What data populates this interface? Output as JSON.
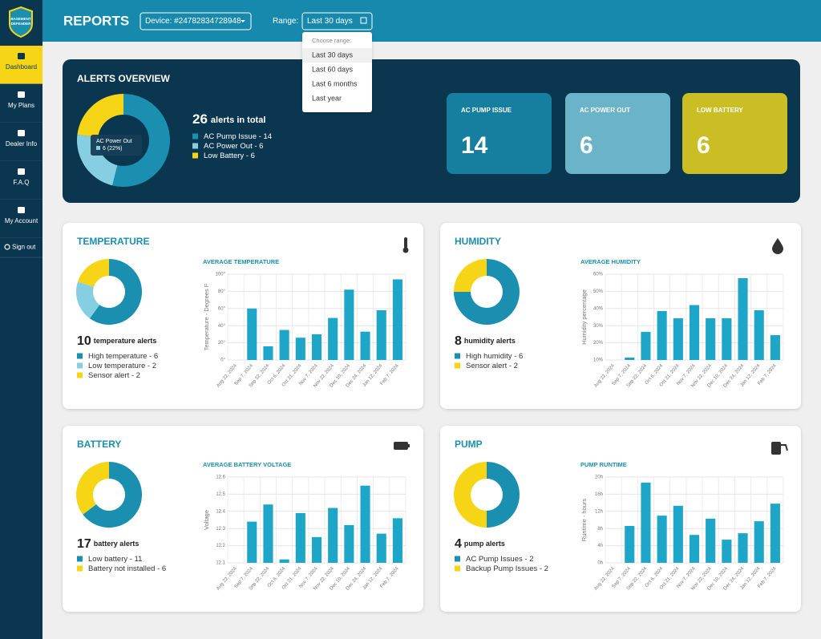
{
  "sidebar": {
    "logo_text": [
      "BASEMENT",
      "DEFENDER"
    ],
    "nav": [
      "Dashboard",
      "My Plans",
      "Dealer Info",
      "F.A.Q",
      "My Account",
      "Sign out"
    ],
    "active": 0
  },
  "header": {
    "title": "REPORTS",
    "device": "Device: #24782834728948",
    "range_label": "Range:",
    "range_value": "Last 30 days"
  },
  "dropdown": {
    "heading": "Choose range:",
    "options": [
      "Last 30 days",
      "Last 60 days",
      "Last 6 months",
      "Last year"
    ],
    "selected": 0
  },
  "overview": {
    "title": "ALERTS OVERVIEW",
    "total": 26,
    "total_label": "alerts in total",
    "donut": {
      "type": "pie",
      "labels": [
        "AC Pump Issue - 14",
        "AC Power Out - 6",
        "Low Battery - 6"
      ],
      "values": [
        14,
        6,
        6
      ],
      "colors": [
        "#1a8fb0",
        "#86cfe2",
        "#f5d515"
      ]
    },
    "tooltip": {
      "name": "AC Power Out",
      "value": "6 (22%)"
    },
    "cards": [
      {
        "title": "AC PUMP ISSUE",
        "value": 14,
        "color": "#167e9f"
      },
      {
        "title": "AC POWER OUT",
        "value": 6,
        "color": "#6bb3c9"
      },
      {
        "title": "LOW BATTERY",
        "value": 6,
        "color": "#cbbd24"
      }
    ]
  },
  "panels": [
    {
      "title": "TEMPERATURE",
      "count": 10,
      "count_label": "temperature alerts",
      "donut": {
        "type": "pie",
        "labels": [
          "High temperature - 6",
          "Low temperature - 2",
          "Sensor alert - 2"
        ],
        "values": [
          6,
          2,
          2
        ],
        "colors": [
          "#1a8fb0",
          "#86cfe2",
          "#f5d515"
        ]
      },
      "chart_data": {
        "type": "bar",
        "title": "AVERAGE TEMPERATURE",
        "y_label": "Temperature - Degrees F",
        "categories": [
          "Aug 22, 2024",
          "Sep 7, 2024",
          "Sep 22, 2024",
          "Oct 6, 2024",
          "Oct 21, 2024",
          "Nov 7, 2024",
          "Nov 22, 2024",
          "Dec 10, 2024",
          "Dec 24, 2024",
          "Jan 12, 2024",
          "Feb 7, 2024"
        ],
        "values": [
          null,
          60,
          16,
          35,
          26,
          30,
          49,
          82,
          33,
          58,
          94
        ],
        "color": "#1ea6c8",
        "ylim": [
          0,
          100
        ],
        "yticks": [
          {
            "value": 0,
            "label": "0°"
          },
          {
            "value": 20,
            "label": "20°"
          },
          {
            "value": 40,
            "label": "40°"
          },
          {
            "value": 60,
            "label": "60°"
          },
          {
            "value": 80,
            "label": "80°"
          },
          {
            "value": 100,
            "label": "100°"
          }
        ],
        "grid": true
      }
    },
    {
      "title": "HUMIDITY",
      "count": 8,
      "count_label": "humidity alerts",
      "donut": {
        "type": "pie",
        "labels": [
          "High humidity - 6",
          "Sensor alert - 2"
        ],
        "values": [
          6,
          2
        ],
        "colors": [
          "#1a8fb0",
          "#f5d515"
        ]
      },
      "chart_data": {
        "type": "bar",
        "title": "AVERAGE HUMIDITY",
        "y_label": "Humidity percentage",
        "categories": [
          "Aug 22, 2024",
          "Sep 7, 2024",
          "Sep 22, 2024",
          "Oct 6, 2024",
          "Oct 21, 2024",
          "Nov 7, 2024",
          "Nov 22, 2024",
          "Dec 10, 2024",
          "Dec 24, 2024",
          "Jan 12, 2024",
          "Feb 7, 2024"
        ],
        "values": [
          null,
          11.4,
          26.4,
          38.5,
          34.3,
          42,
          34.3,
          34.3,
          57.7,
          39,
          24.5
        ],
        "color": "#1ea6c8",
        "ylim": [
          10,
          60
        ],
        "yticks": [
          {
            "value": 10,
            "label": "10%"
          },
          {
            "value": 20,
            "label": "20%"
          },
          {
            "value": 30,
            "label": "30%"
          },
          {
            "value": 40,
            "label": "40%"
          },
          {
            "value": 50,
            "label": "50%"
          },
          {
            "value": 60,
            "label": "60%"
          }
        ],
        "grid": true
      }
    },
    {
      "title": "BATTERY",
      "count": 17,
      "count_label": "battery alerts",
      "donut": {
        "type": "pie",
        "labels": [
          "Low battery - 11",
          "Battery not installed - 6"
        ],
        "values": [
          11,
          6
        ],
        "colors": [
          "#1a8fb0",
          "#f5d515"
        ]
      },
      "chart_data": {
        "type": "bar",
        "title": "AVERAGE BATTERY VOLTAGE",
        "y_label": "Voltage",
        "categories": [
          "Aug 22, 2024",
          "Sep 7, 2024",
          "Sep 22, 2024",
          "Oct 6, 2024",
          "Oct 21, 2024",
          "Nov 7, 2024",
          "Nov 22, 2024",
          "Dec 10, 2024",
          "Dec 24, 2024",
          "Jan 12, 2024",
          "Feb 7, 2024"
        ],
        "values": [
          null,
          12.34,
          12.44,
          12.12,
          12.39,
          12.25,
          12.42,
          12.32,
          12.55,
          12.27,
          12.36
        ],
        "color": "#1ea6c8",
        "ylim": [
          12.1,
          12.6
        ],
        "yticks": [
          12.1,
          12.2,
          12.3,
          12.4,
          12.5,
          12.6
        ],
        "grid": true
      }
    },
    {
      "title": "PUMP",
      "count": 4,
      "count_label": "pump alerts",
      "donut": {
        "type": "pie",
        "labels": [
          "AC Pump Issues - 2",
          "Backup Pump Issues - 2"
        ],
        "values": [
          2,
          2
        ],
        "colors": [
          "#1a8fb0",
          "#f5d515"
        ]
      },
      "chart_data": {
        "type": "bar",
        "title": "PUMP RUNTIME",
        "y_label": "Runtime - hours",
        "categories": [
          "Aug 22, 2024",
          "Sep 7, 2024",
          "Sep 22, 2024",
          "Oct 6, 2024",
          "Oct 21, 2024",
          "Nov 7, 2024",
          "Nov 22, 2024",
          "Dec 10, 2024",
          "Dec 24, 2024",
          "Jan 12, 2024",
          "Feb 7, 2024"
        ],
        "values": [
          null,
          8.6,
          18.7,
          11,
          13.3,
          6.5,
          10.3,
          5.4,
          6.9,
          9.7,
          13.8
        ],
        "color": "#1ea6c8",
        "ylim": [
          0,
          20
        ],
        "yticks": [
          {
            "value": 0,
            "label": "0h"
          },
          {
            "value": 4,
            "label": "4h"
          },
          {
            "value": 8,
            "label": "8h"
          },
          {
            "value": 12,
            "label": "12h"
          },
          {
            "value": 16,
            "label": "16h"
          },
          {
            "value": 20,
            "label": "20h"
          }
        ],
        "grid": true
      }
    }
  ]
}
